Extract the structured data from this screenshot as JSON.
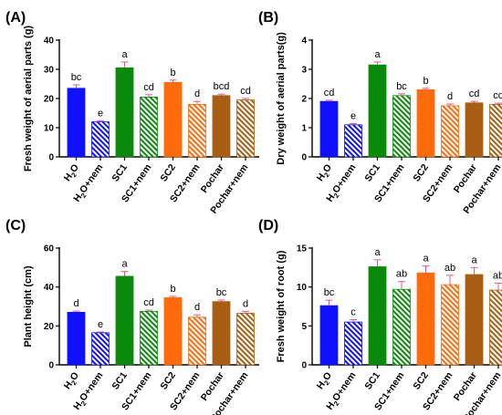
{
  "categories": [
    "H2O",
    "H2O+nem",
    "SC1",
    "SC1+nem",
    "SC2",
    "SC2+nem",
    "Pochar",
    "Pochar+nem"
  ],
  "colors": {
    "H2O": "#1010ff",
    "SC1": "#0a8a0a",
    "SC2": "#ff6a0a",
    "Pochar": "#a85f14",
    "error": "#e05a8a"
  },
  "chart_data": [
    {
      "panel_label": "(A)",
      "type": "bar",
      "ylabel": "Fresh weight of aerial parts (g)",
      "ylim": [
        0,
        40
      ],
      "yticks": [
        0,
        10,
        20,
        30,
        40
      ],
      "categories": [
        "H2O",
        "H2O+nem",
        "SC1",
        "SC1+nem",
        "SC2",
        "SC2+nem",
        "Pochar",
        "Pochar+nem"
      ],
      "values": [
        23.5,
        12.0,
        30.5,
        20.5,
        25.5,
        18.0,
        21.0,
        19.5
      ],
      "errors": [
        1.2,
        0.4,
        2.0,
        0.8,
        0.8,
        1.0,
        0.5,
        0.5
      ],
      "significance": [
        "bc",
        "e",
        "a",
        "cd",
        "b",
        "d",
        "bcd",
        "cd"
      ]
    },
    {
      "panel_label": "(B)",
      "type": "bar",
      "ylabel": "Dry weight of aerial parts(g)",
      "ylim": [
        0,
        4
      ],
      "yticks": [
        0,
        1,
        2,
        3,
        4
      ],
      "categories": [
        "H2O",
        "H2O+nem",
        "SC1",
        "SC1+nem",
        "SC2",
        "SC2+nem",
        "Pochar",
        "Pochar+nem"
      ],
      "values": [
        1.9,
        1.1,
        3.15,
        2.1,
        2.3,
        1.75,
        1.85,
        1.8
      ],
      "errors": [
        0.04,
        0.04,
        0.1,
        0.06,
        0.05,
        0.06,
        0.05,
        0.04
      ],
      "significance": [
        "cd",
        "e",
        "a",
        "bc",
        "b",
        "d",
        "cd",
        "cd"
      ]
    },
    {
      "panel_label": "(C)",
      "type": "bar",
      "ylabel": "Plant height (cm)",
      "ylim": [
        0,
        60
      ],
      "yticks": [
        0,
        20,
        40,
        60
      ],
      "categories": [
        "H2O",
        "H2O+nem",
        "SC1",
        "SC1+nem",
        "SC2",
        "SC2+nem",
        "Pochar",
        "Pochar+nem"
      ],
      "values": [
        27,
        16.5,
        45.5,
        27.5,
        34.5,
        24.5,
        32.5,
        26.5
      ],
      "errors": [
        0.6,
        0.4,
        2.5,
        0.6,
        0.7,
        1.2,
        0.8,
        1.0
      ],
      "significance": [
        "d",
        "e",
        "a",
        "cd",
        "b",
        "d",
        "bc",
        "d"
      ]
    },
    {
      "panel_label": "(D)",
      "type": "bar",
      "ylabel": "Fresh weight of root (g)",
      "ylim": [
        0,
        15
      ],
      "yticks": [
        0,
        5,
        10,
        15
      ],
      "categories": [
        "H2O",
        "H2O+nem",
        "SC1",
        "SC1+nem",
        "SC2",
        "SC2+nem",
        "Pochar",
        "Pochar+nem"
      ],
      "values": [
        7.6,
        5.5,
        12.6,
        9.7,
        11.8,
        10.3,
        11.6,
        9.6
      ],
      "errors": [
        0.7,
        0.3,
        0.9,
        1.0,
        0.9,
        1.2,
        0.9,
        0.9
      ],
      "significance": [
        "bc",
        "c",
        "a",
        "ab",
        "a",
        "ab",
        "a",
        "ab"
      ]
    }
  ]
}
